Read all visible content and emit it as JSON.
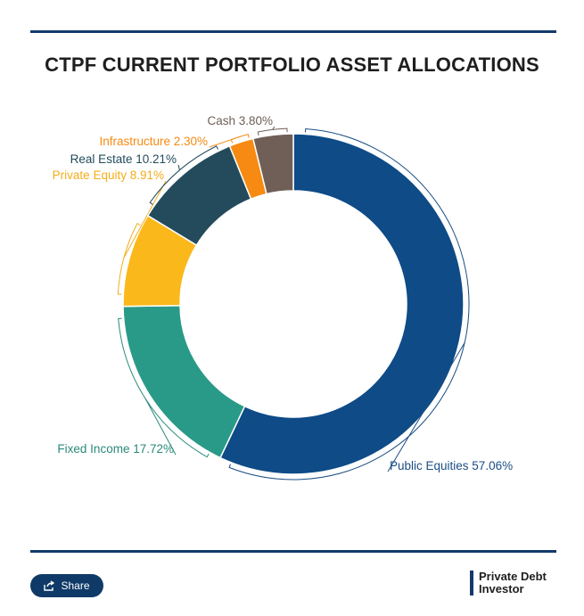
{
  "header": {
    "title": "CTPF CURRENT PORTFOLIO ASSET ALLOCATIONS"
  },
  "footer": {
    "share_label": "Share",
    "share_icon": "share-icon",
    "brand_line1": "Private Debt",
    "brand_line2": "Investor"
  },
  "chart_data": {
    "type": "donut",
    "title": "CTPF CURRENT PORTFOLIO ASSET ALLOCATIONS",
    "unit": "%",
    "slices": [
      {
        "label": "Public Equities",
        "value": 57.06,
        "display": "Public Equities 57.06%",
        "color": "#0e4b87",
        "label_color": "#1b4e84"
      },
      {
        "label": "Fixed Income",
        "value": 17.72,
        "display": "Fixed Income 17.72%",
        "color": "#2a9a88",
        "label_color": "#2a8a7a"
      },
      {
        "label": "Private Equity",
        "value": 8.91,
        "display": "Private Equity 8.91%",
        "color": "#fbb81b",
        "label_color": "#f3ad1b"
      },
      {
        "label": "Real Estate",
        "value": 10.21,
        "display": "Real Estate 10.21%",
        "color": "#234b5c",
        "label_color": "#234b5c"
      },
      {
        "label": "Infrastructure",
        "value": 2.3,
        "display": "Infrastructure 2.30%",
        "color": "#f68a12",
        "label_color": "#f68a12"
      },
      {
        "label": "Cash",
        "value": 3.8,
        "display": "Cash 3.80%",
        "color": "#6f5f57",
        "label_color": "#6f5f57"
      }
    ]
  }
}
